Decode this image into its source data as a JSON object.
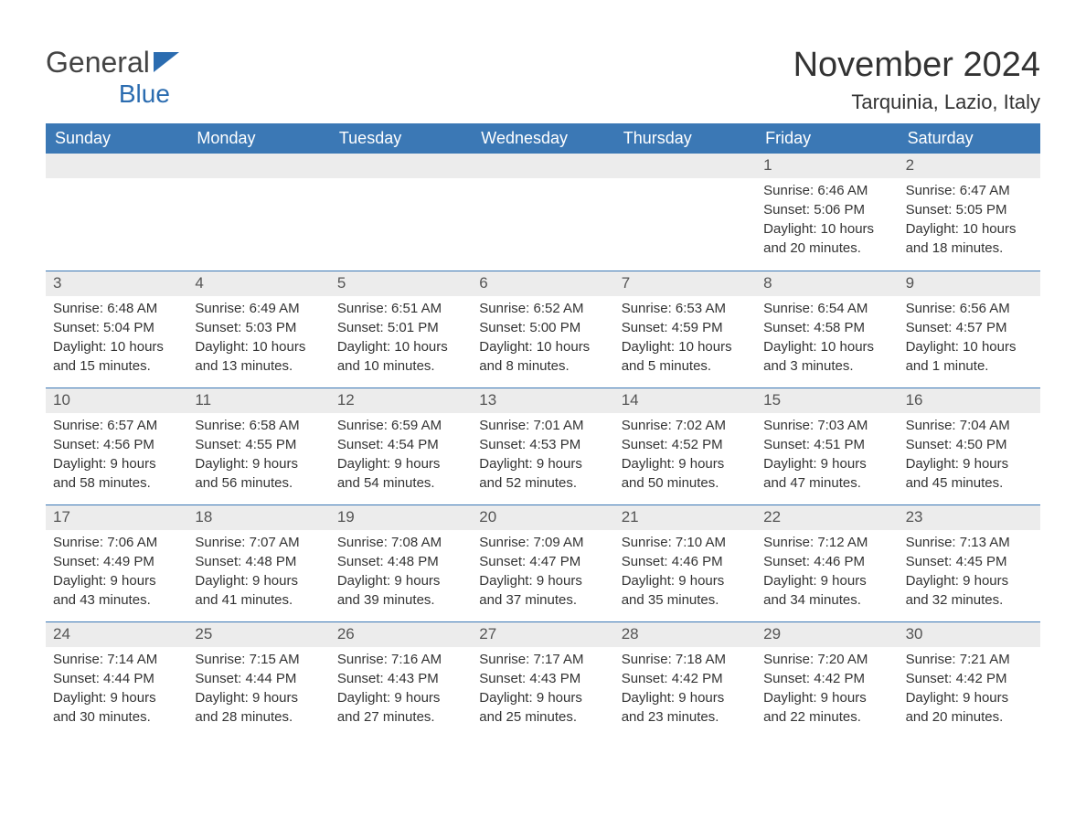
{
  "logo": {
    "text1": "General",
    "text2": "Blue",
    "color_dark": "#444444",
    "color_blue": "#2b6cb0",
    "flag_color": "#2b6cb0"
  },
  "title": "November 2024",
  "location": "Tarquinia, Lazio, Italy",
  "header_bg": "#3b78b5",
  "header_fg": "#ffffff",
  "daynum_bg": "#ececec",
  "row_border": "#3b78b5",
  "body_bg": "#ffffff",
  "text_color": "#333333",
  "weekdays": [
    "Sunday",
    "Monday",
    "Tuesday",
    "Wednesday",
    "Thursday",
    "Friday",
    "Saturday"
  ],
  "weeks": [
    [
      null,
      null,
      null,
      null,
      null,
      {
        "n": "1",
        "sunrise": "6:46 AM",
        "sunset": "5:06 PM",
        "daylight": "10 hours and 20 minutes."
      },
      {
        "n": "2",
        "sunrise": "6:47 AM",
        "sunset": "5:05 PM",
        "daylight": "10 hours and 18 minutes."
      }
    ],
    [
      {
        "n": "3",
        "sunrise": "6:48 AM",
        "sunset": "5:04 PM",
        "daylight": "10 hours and 15 minutes."
      },
      {
        "n": "4",
        "sunrise": "6:49 AM",
        "sunset": "5:03 PM",
        "daylight": "10 hours and 13 minutes."
      },
      {
        "n": "5",
        "sunrise": "6:51 AM",
        "sunset": "5:01 PM",
        "daylight": "10 hours and 10 minutes."
      },
      {
        "n": "6",
        "sunrise": "6:52 AM",
        "sunset": "5:00 PM",
        "daylight": "10 hours and 8 minutes."
      },
      {
        "n": "7",
        "sunrise": "6:53 AM",
        "sunset": "4:59 PM",
        "daylight": "10 hours and 5 minutes."
      },
      {
        "n": "8",
        "sunrise": "6:54 AM",
        "sunset": "4:58 PM",
        "daylight": "10 hours and 3 minutes."
      },
      {
        "n": "9",
        "sunrise": "6:56 AM",
        "sunset": "4:57 PM",
        "daylight": "10 hours and 1 minute."
      }
    ],
    [
      {
        "n": "10",
        "sunrise": "6:57 AM",
        "sunset": "4:56 PM",
        "daylight": "9 hours and 58 minutes."
      },
      {
        "n": "11",
        "sunrise": "6:58 AM",
        "sunset": "4:55 PM",
        "daylight": "9 hours and 56 minutes."
      },
      {
        "n": "12",
        "sunrise": "6:59 AM",
        "sunset": "4:54 PM",
        "daylight": "9 hours and 54 minutes."
      },
      {
        "n": "13",
        "sunrise": "7:01 AM",
        "sunset": "4:53 PM",
        "daylight": "9 hours and 52 minutes."
      },
      {
        "n": "14",
        "sunrise": "7:02 AM",
        "sunset": "4:52 PM",
        "daylight": "9 hours and 50 minutes."
      },
      {
        "n": "15",
        "sunrise": "7:03 AM",
        "sunset": "4:51 PM",
        "daylight": "9 hours and 47 minutes."
      },
      {
        "n": "16",
        "sunrise": "7:04 AM",
        "sunset": "4:50 PM",
        "daylight": "9 hours and 45 minutes."
      }
    ],
    [
      {
        "n": "17",
        "sunrise": "7:06 AM",
        "sunset": "4:49 PM",
        "daylight": "9 hours and 43 minutes."
      },
      {
        "n": "18",
        "sunrise": "7:07 AM",
        "sunset": "4:48 PM",
        "daylight": "9 hours and 41 minutes."
      },
      {
        "n": "19",
        "sunrise": "7:08 AM",
        "sunset": "4:48 PM",
        "daylight": "9 hours and 39 minutes."
      },
      {
        "n": "20",
        "sunrise": "7:09 AM",
        "sunset": "4:47 PM",
        "daylight": "9 hours and 37 minutes."
      },
      {
        "n": "21",
        "sunrise": "7:10 AM",
        "sunset": "4:46 PM",
        "daylight": "9 hours and 35 minutes."
      },
      {
        "n": "22",
        "sunrise": "7:12 AM",
        "sunset": "4:46 PM",
        "daylight": "9 hours and 34 minutes."
      },
      {
        "n": "23",
        "sunrise": "7:13 AM",
        "sunset": "4:45 PM",
        "daylight": "9 hours and 32 minutes."
      }
    ],
    [
      {
        "n": "24",
        "sunrise": "7:14 AM",
        "sunset": "4:44 PM",
        "daylight": "9 hours and 30 minutes."
      },
      {
        "n": "25",
        "sunrise": "7:15 AM",
        "sunset": "4:44 PM",
        "daylight": "9 hours and 28 minutes."
      },
      {
        "n": "26",
        "sunrise": "7:16 AM",
        "sunset": "4:43 PM",
        "daylight": "9 hours and 27 minutes."
      },
      {
        "n": "27",
        "sunrise": "7:17 AM",
        "sunset": "4:43 PM",
        "daylight": "9 hours and 25 minutes."
      },
      {
        "n": "28",
        "sunrise": "7:18 AM",
        "sunset": "4:42 PM",
        "daylight": "9 hours and 23 minutes."
      },
      {
        "n": "29",
        "sunrise": "7:20 AM",
        "sunset": "4:42 PM",
        "daylight": "9 hours and 22 minutes."
      },
      {
        "n": "30",
        "sunrise": "7:21 AM",
        "sunset": "4:42 PM",
        "daylight": "9 hours and 20 minutes."
      }
    ]
  ],
  "labels": {
    "sunrise": "Sunrise: ",
    "sunset": "Sunset: ",
    "daylight": "Daylight: "
  }
}
